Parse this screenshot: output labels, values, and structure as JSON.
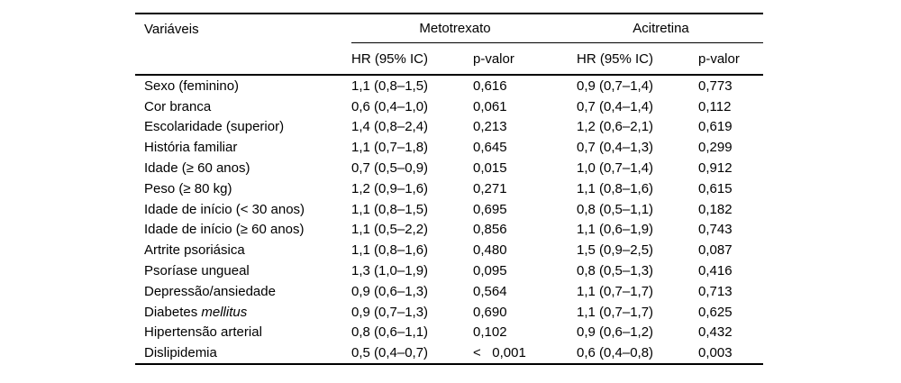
{
  "colors": {
    "background": "#ffffff",
    "text": "#000000",
    "rule": "#000000"
  },
  "table": {
    "header": {
      "variables": "Variáveis",
      "group1": "Metotrexato",
      "group2": "Acitretina"
    },
    "subheaders": {
      "hr1": "HR (95% IC)",
      "p1": "p-valor",
      "hr2": "HR (95% IC)",
      "p2": "p-valor"
    },
    "rows": [
      {
        "variable": "Sexo (feminino)",
        "metotrexato_hr": "1,1 (0,8–1,5)",
        "metotrexato_p": "0,616",
        "acitretina_hr": "0,9 (0,7–1,4)",
        "acitretina_p": "0,773"
      },
      {
        "variable": "Cor branca",
        "metotrexato_hr": "0,6 (0,4–1,0)",
        "metotrexato_p": "0,061",
        "acitretina_hr": "0,7 (0,4–1,4)",
        "acitretina_p": "0,112"
      },
      {
        "variable": "Escolaridade (superior)",
        "metotrexato_hr": "1,4 (0,8–2,4)",
        "metotrexato_p": "0,213",
        "acitretina_hr": "1,2 (0,6–2,1)",
        "acitretina_p": "0,619"
      },
      {
        "variable": "História familiar",
        "metotrexato_hr": "1,1 (0,7–1,8)",
        "metotrexato_p": "0,645",
        "acitretina_hr": "0,7 (0,4–1,3)",
        "acitretina_p": "0,299"
      },
      {
        "variable": "Idade (≥ 60 anos)",
        "metotrexato_hr": "0,7 (0,5–0,9)",
        "metotrexato_p": "0,015",
        "acitretina_hr": "1,0 (0,7–1,4)",
        "acitretina_p": "0,912"
      },
      {
        "variable": "Peso (≥ 80 kg)",
        "metotrexato_hr": "1,2 (0,9–1,6)",
        "metotrexato_p": "0,271",
        "acitretina_hr": "1,1 (0,8–1,6)",
        "acitretina_p": "0,615"
      },
      {
        "variable": "Idade de início (< 30 anos)",
        "metotrexato_hr": "1,1 (0,8–1,5)",
        "metotrexato_p": "0,695",
        "acitretina_hr": "0,8 (0,5–1,1)",
        "acitretina_p": "0,182"
      },
      {
        "variable": "Idade de início (≥ 60 anos)",
        "metotrexato_hr": "1,1 (0,5–2,2)",
        "metotrexato_p": "0,856",
        "acitretina_hr": "1,1 (0,6–1,9)",
        "acitretina_p": "0,743"
      },
      {
        "variable": "Artrite psoriásica",
        "metotrexato_hr": "1,1 (0,8–1,6)",
        "metotrexato_p": "0,480",
        "acitretina_hr": "1,5 (0,9–2,5)",
        "acitretina_p": "0,087"
      },
      {
        "variable": "Psoríase ungueal",
        "metotrexato_hr": "1,3 (1,0–1,9)",
        "metotrexato_p": "0,095",
        "acitretina_hr": "0,8 (0,5–1,3)",
        "acitretina_p": "0,416"
      },
      {
        "variable": "Depressão/ansiedade",
        "metotrexato_hr": "0,9 (0,6–1,3)",
        "metotrexato_p": "0,564",
        "acitretina_hr": "1,1 (0,7–1,7)",
        "acitretina_p": "0,713"
      },
      {
        "variable": "Diabetes ",
        "variable_italic": "mellitus",
        "metotrexato_hr": "0,9 (0,7–1,3)",
        "metotrexato_p": "0,690",
        "acitretina_hr": "1,1 (0,7–1,7)",
        "acitretina_p": "0,625"
      },
      {
        "variable": "Hipertensão arterial",
        "metotrexato_hr": "0,8 (0,6–1,1)",
        "metotrexato_p": "0,102",
        "acitretina_hr": "0,9 (0,6–1,2)",
        "acitretina_p": "0,432"
      },
      {
        "variable": "Dislipidemia",
        "metotrexato_hr": "0,5 (0,4–0,7)",
        "metotrexato_p": "<   0,001",
        "acitretina_hr": "0,6 (0,4–0,8)",
        "acitretina_p": "0,003"
      }
    ]
  }
}
